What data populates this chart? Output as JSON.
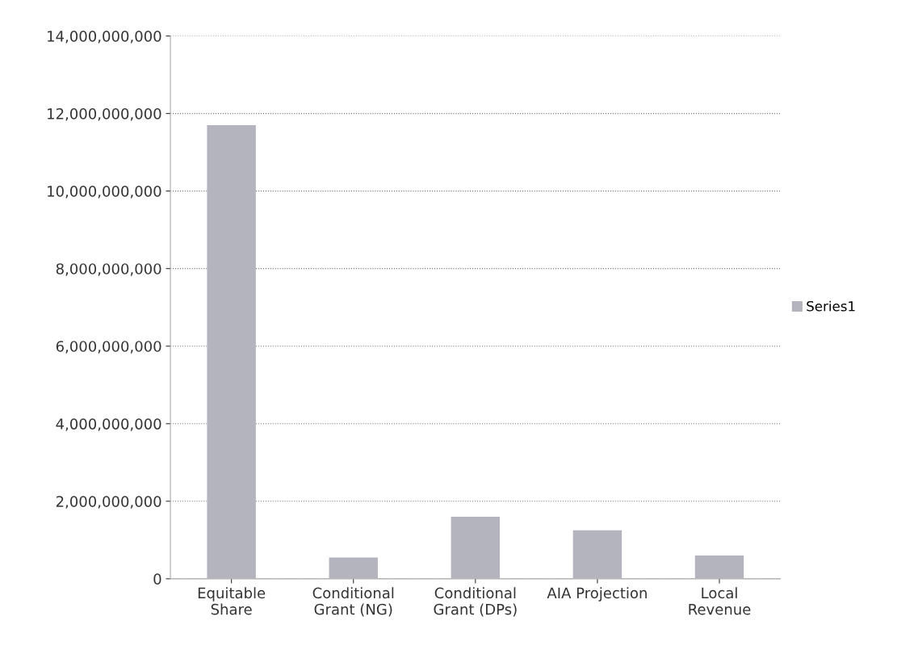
{
  "chart_data": {
    "type": "bar",
    "categories": [
      "Equitable\nShare",
      "Conditional\nGrant (NG)",
      "Conditional\nGrant (DPs)",
      "AIA Projection",
      "Local\nRevenue"
    ],
    "series": [
      {
        "name": "Series1",
        "color": "#b4b4be",
        "values": [
          11700000000,
          550000000,
          1600000000,
          1250000000,
          600000000
        ]
      }
    ],
    "ylim": [
      0,
      14000000000
    ],
    "yticks": [
      {
        "value": 0,
        "label": "0"
      },
      {
        "value": 2000000000,
        "label": "2,000,000,000"
      },
      {
        "value": 4000000000,
        "label": "4,000,000,000"
      },
      {
        "value": 6000000000,
        "label": "6,000,000,000"
      },
      {
        "value": 8000000000,
        "label": "8,000,000,000"
      },
      {
        "value": 10000000000,
        "label": "10,000,000,000"
      },
      {
        "value": 12000000000,
        "label": "12,000,000,000"
      },
      {
        "value": 14000000000,
        "label": "14,000,000,000"
      }
    ],
    "grid": "y",
    "legend": "right"
  }
}
